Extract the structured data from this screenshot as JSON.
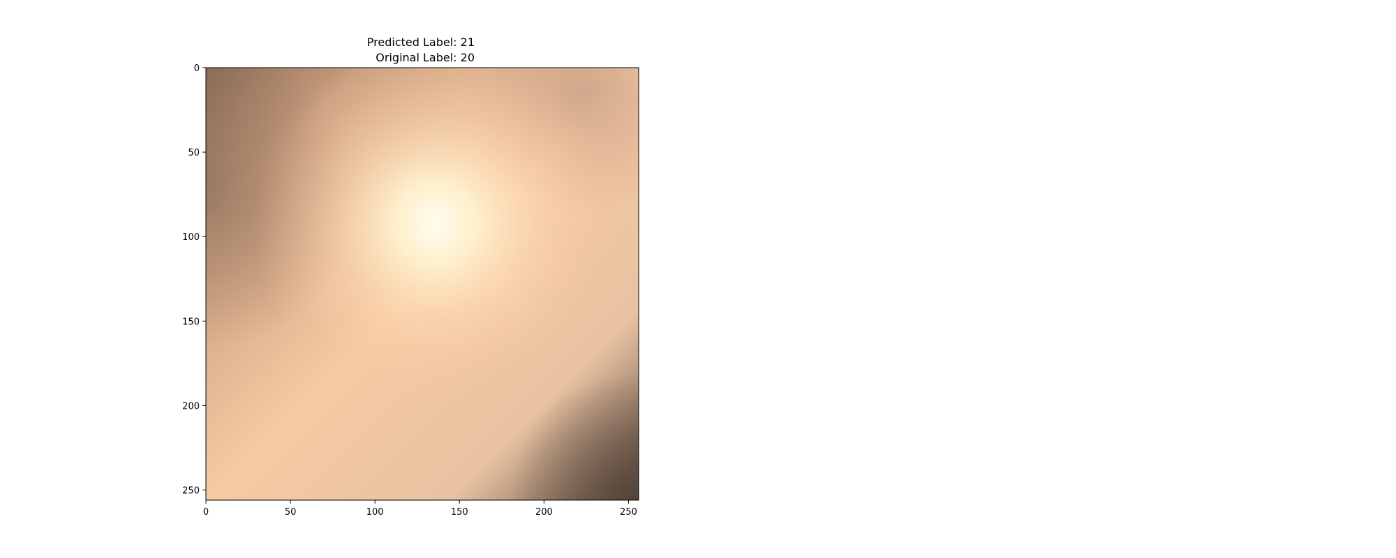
{
  "title": {
    "line1": "Predicted Label: 21",
    "line2": "Original Label: 20"
  },
  "colors": {
    "frame": "#000000",
    "background": "#ffffff",
    "image_dark_corner": "#6f5a4c",
    "image_base": "#f2c4a1",
    "image_highlight": "#fffbe8"
  },
  "chart_data": {
    "type": "image",
    "title": "Predicted Label: 21\nOriginal Label: 20",
    "xlim": [
      0,
      256
    ],
    "ylim": [
      256,
      0
    ],
    "xticks": [
      0,
      50,
      100,
      150,
      200,
      250
    ],
    "yticks": [
      0,
      50,
      100,
      150,
      200,
      250
    ],
    "predicted_label": 21,
    "original_label": 20,
    "grid": false
  }
}
